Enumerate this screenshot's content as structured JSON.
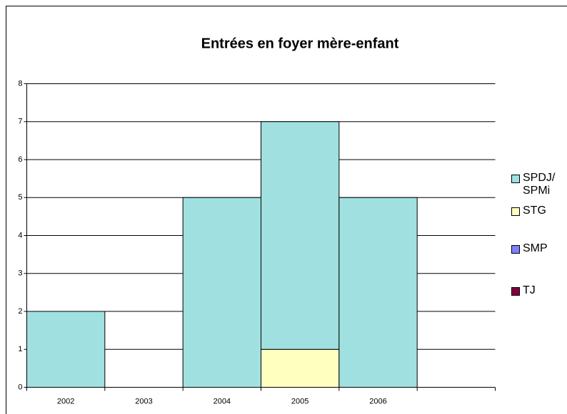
{
  "chart_data": {
    "type": "stacked_bar",
    "title": "Entrées en foyer mère-enfant",
    "categories": [
      "2002",
      "2003",
      "2004",
      "2005",
      "2006",
      null
    ],
    "series": [
      {
        "name": "TJ",
        "color": "#800040",
        "values": [
          0,
          0,
          0,
          0,
          0,
          null
        ]
      },
      {
        "name": "SMP",
        "color": "#8080ff",
        "values": [
          0,
          0,
          0,
          0,
          0,
          null
        ]
      },
      {
        "name": "STG",
        "color": "#ffffc0",
        "values": [
          0,
          0,
          0,
          1,
          0,
          null
        ]
      },
      {
        "name": "SPDJ/SPMi",
        "color": "#a0e0e0",
        "values": [
          2,
          0,
          5,
          6,
          5,
          null
        ]
      }
    ],
    "ylim": [
      0,
      8
    ],
    "yticks": [
      0,
      1,
      2,
      3,
      4,
      5,
      6,
      7,
      8
    ],
    "grid": true,
    "legend": "right"
  }
}
